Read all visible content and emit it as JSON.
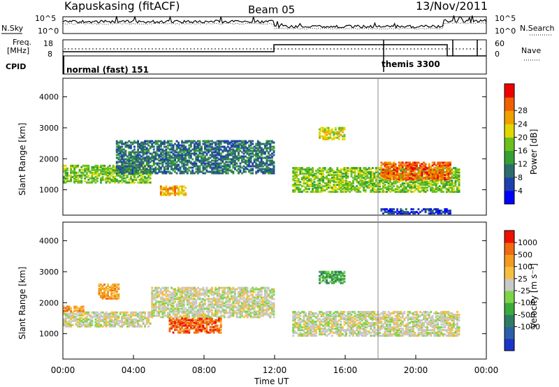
{
  "header": {
    "station": "Kapuskasing (fitACF)",
    "beam": "Beam 05",
    "date": "13/Nov/2011"
  },
  "top_panels": {
    "nsky_label": "N.Sky",
    "nsearch_label": "N.Search",
    "freq_label_1": "Freq.",
    "freq_label_2": "[MHz]",
    "nave_label": "Nave",
    "cpid_label": "CPID",
    "noise_ticks": [
      "10^5",
      "10^0"
    ],
    "freq_ticks": [
      "18",
      "8"
    ],
    "nave_ticks": [
      "60",
      "0"
    ],
    "cpid_modes": [
      "normal (fast) 151",
      "themis 3300"
    ]
  },
  "colors": {
    "power_scale": [
      "#0000ff",
      "#1f3fae",
      "#2e6b6b",
      "#33a033",
      "#6bc020",
      "#e0d800",
      "#f0a000",
      "#f06000",
      "#f00000"
    ],
    "velocity_scale": [
      "#1a35c8",
      "#2c5fa8",
      "#2e7d62",
      "#3caa3c",
      "#7ed448",
      "#c8c8c8",
      "#f5c040",
      "#f59a20",
      "#f06a10",
      "#f01000"
    ],
    "scatter_gray": "#c8c8c4",
    "scatter_orange": "#f08a10"
  },
  "chart_data": [
    {
      "type": "heatmap",
      "panel": "power",
      "ylabel": "Slant Range [km]",
      "ylim": [
        180,
        4600
      ],
      "y_ticks": [
        1000,
        2000,
        3000,
        4000
      ],
      "colorbar_label": "Power [dB]",
      "colorbar_ticks": [
        4,
        8,
        12,
        16,
        20,
        24,
        28
      ],
      "xlim_hours": [
        0,
        24
      ],
      "scatter_regions": [
        {
          "t0": 0.0,
          "t1": 5.0,
          "r0": 1200,
          "r1": 1800,
          "level": 4
        },
        {
          "t0": 3.0,
          "t1": 12.0,
          "r0": 1500,
          "r1": 2600,
          "level": 2
        },
        {
          "t0": 5.5,
          "t1": 7.0,
          "r0": 800,
          "r1": 1100,
          "level": 6
        },
        {
          "t0": 13.0,
          "t1": 22.5,
          "r0": 900,
          "r1": 1700,
          "level": 4
        },
        {
          "t0": 14.5,
          "t1": 16.0,
          "r0": 2600,
          "r1": 3000,
          "level": 5
        },
        {
          "t0": 18.0,
          "t1": 22.0,
          "r0": 1300,
          "r1": 1900,
          "level": 7
        },
        {
          "t0": 18.0,
          "t1": 22.0,
          "r0": 200,
          "r1": 400,
          "level": 1
        }
      ]
    },
    {
      "type": "heatmap",
      "panel": "velocity",
      "ylabel": "Slant Range [km]",
      "xlabel": "Time UT",
      "ylim": [
        180,
        4600
      ],
      "y_ticks": [
        1000,
        2000,
        3000,
        4000
      ],
      "x_ticks": [
        "00:00",
        "04:00",
        "08:00",
        "12:00",
        "16:00",
        "20:00",
        "00:00"
      ],
      "colorbar_label": "Velocity [m s⁻¹]",
      "colorbar_ticks": [
        "1000",
        "500",
        "100",
        "25",
        "-25",
        "-100",
        "-500",
        "-1000"
      ],
      "scatter_regions": [
        {
          "t0": 0.0,
          "t1": 5.0,
          "r0": 1200,
          "r1": 1700,
          "level": 5
        },
        {
          "t0": 0.0,
          "t1": 1.2,
          "r0": 1700,
          "r1": 1900,
          "level": 7
        },
        {
          "t0": 2.0,
          "t1": 3.2,
          "r0": 2100,
          "r1": 2600,
          "level": 7
        },
        {
          "t0": 5.0,
          "t1": 12.0,
          "r0": 1500,
          "r1": 2500,
          "level": 5
        },
        {
          "t0": 6.0,
          "t1": 9.0,
          "r0": 1000,
          "r1": 1500,
          "level": 8
        },
        {
          "t0": 13.0,
          "t1": 22.5,
          "r0": 900,
          "r1": 1700,
          "level": 5
        },
        {
          "t0": 14.5,
          "t1": 16.0,
          "r0": 2600,
          "r1": 3000,
          "level": 3
        }
      ]
    }
  ]
}
